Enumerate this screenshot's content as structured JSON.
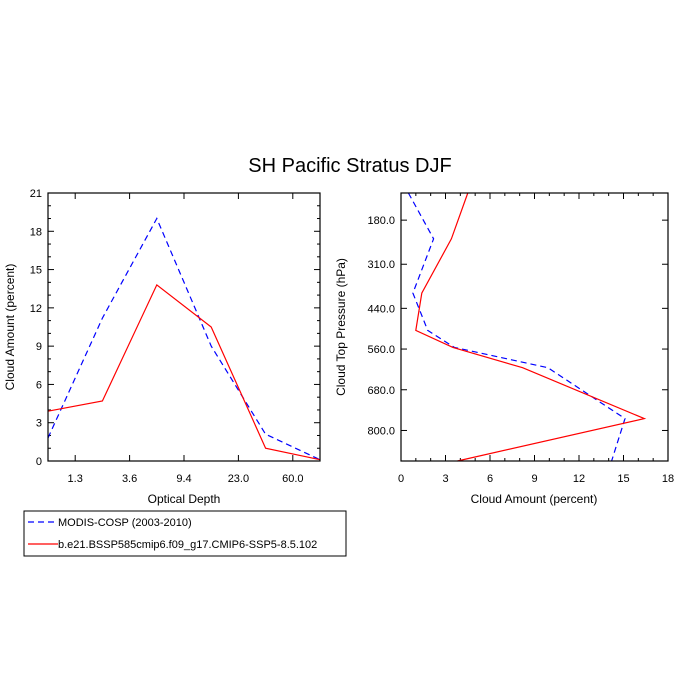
{
  "chart_data": [
    {
      "type": "line",
      "title": "SH Pacific Stratus DJF",
      "xlabel": "Optical Depth",
      "ylabel": "Cloud Amount (percent)",
      "categories": [
        "1.3",
        "3.6",
        "9.4",
        "23.0",
        "60.0"
      ],
      "ylim": [
        0,
        21
      ],
      "yticks": [
        0,
        3,
        6,
        9,
        12,
        15,
        18,
        21
      ],
      "ytick_labels": [
        "0",
        "3",
        "6",
        "9",
        "12",
        "15",
        "18",
        "21"
      ],
      "series": [
        {
          "name": "MODIS-COSP (2003-2010)",
          "color": "#0000ff",
          "dash": "dashed",
          "points": [
            [
              0,
              1.8
            ],
            [
              1,
              11.2
            ],
            [
              2,
              19.0
            ],
            [
              3,
              9.0
            ],
            [
              4,
              2.1
            ],
            [
              5,
              0.1
            ]
          ]
        },
        {
          "name": "b.e21.BSSP585cmip6.f09_g17.CMIP6-SSP5-8.5.102",
          "color": "#ff0000",
          "dash": "solid",
          "points": [
            [
              0,
              3.9
            ],
            [
              1,
              4.7
            ],
            [
              2,
              13.8
            ],
            [
              3,
              10.5
            ],
            [
              4,
              1.0
            ],
            [
              5,
              0.1
            ]
          ]
        }
      ]
    },
    {
      "type": "line",
      "xlabel": "Cloud Amount (percent)",
      "ylabel": "Cloud Top Pressure (hPa)",
      "xlim": [
        0,
        18
      ],
      "xticks": [
        0,
        3,
        6,
        9,
        12,
        15,
        18
      ],
      "xtick_labels": [
        "0",
        "3",
        "6",
        "9",
        "12",
        "15",
        "18"
      ],
      "ylim": [
        890,
        100
      ],
      "yticks": [
        180,
        310,
        440,
        560,
        680,
        800
      ],
      "ytick_labels": [
        "180.0",
        "310.0",
        "440.0",
        "560.0",
        "680.0",
        "800.0"
      ],
      "series": [
        {
          "name": "MODIS-COSP (2003-2010)",
          "color": "#0000ff",
          "dash": "dashed",
          "points": [
            [
              0.5,
              100
            ],
            [
              2.2,
              235
            ],
            [
              0.8,
              395
            ],
            [
              1.8,
              505
            ],
            [
              3.6,
              555
            ],
            [
              9.9,
              615
            ],
            [
              15.1,
              765
            ],
            [
              14.2,
              890
            ]
          ]
        },
        {
          "name": "b.e21.BSSP585cmip6.f09_g17.CMIP6-SSP5-8.5.102",
          "color": "#ff0000",
          "dash": "solid",
          "points": [
            [
              4.5,
              100
            ],
            [
              3.4,
              235
            ],
            [
              1.4,
              395
            ],
            [
              1.0,
              505
            ],
            [
              3.5,
              555
            ],
            [
              8.2,
              615
            ],
            [
              16.4,
              765
            ],
            [
              3.8,
              890
            ]
          ]
        }
      ]
    }
  ],
  "legend": {
    "entries": [
      {
        "label": "MODIS-COSP (2003-2010)",
        "color": "#0000ff",
        "dash": "dashed"
      },
      {
        "label": "b.e21.BSSP585cmip6.f09_g17.CMIP6-SSP5-8.5.102",
        "color": "#ff0000",
        "dash": "solid"
      }
    ]
  }
}
